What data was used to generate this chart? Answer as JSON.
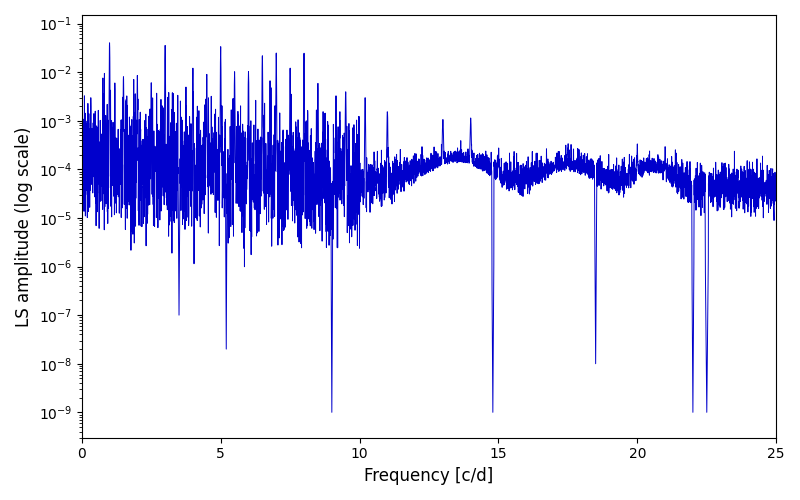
{
  "title": "",
  "xlabel": "Frequency [c/d]",
  "ylabel": "LS amplitude (log scale)",
  "xlim": [
    0,
    25
  ],
  "ylim_low": 3e-10,
  "ylim_high": 0.15,
  "line_color": "#0000cc",
  "line_width": 0.7,
  "background_color": "#ffffff",
  "figsize": [
    8.0,
    5.0
  ],
  "dpi": 100
}
